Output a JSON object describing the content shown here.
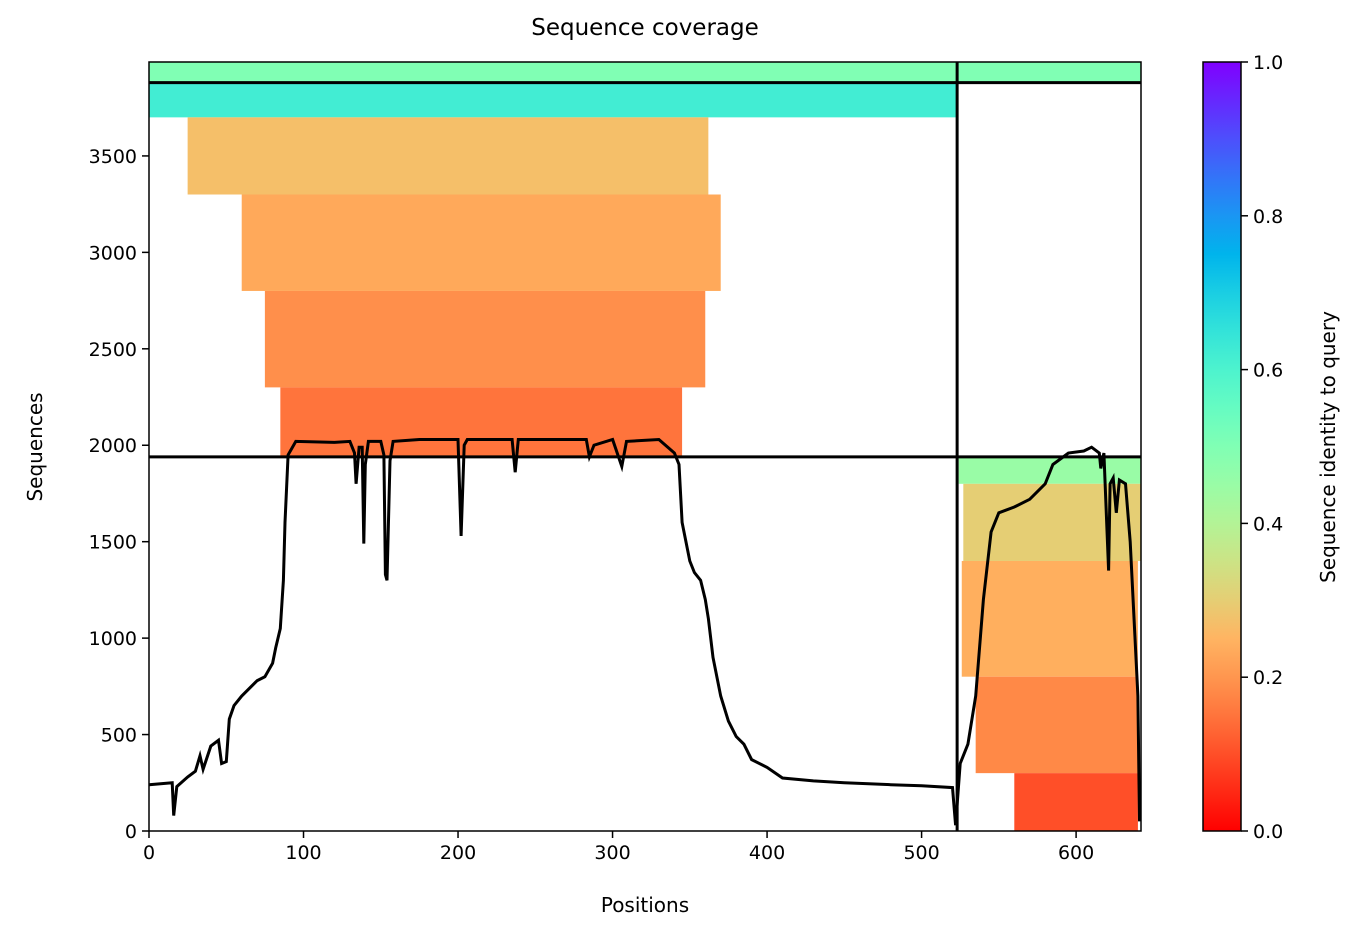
{
  "chart_data": {
    "type": "coverage",
    "title": "Sequence coverage",
    "xlabel": "Positions",
    "ylabel": "Sequences",
    "xlim": [
      0,
      642
    ],
    "ylim": [
      0,
      3987
    ],
    "xticks": [
      0,
      100,
      200,
      300,
      400,
      500,
      600
    ],
    "yticks": [
      0,
      500,
      1000,
      1500,
      2000,
      2500,
      3000,
      3500
    ],
    "colormap": "rainbow_r",
    "colorbar": {
      "label": "Sequence identity to query",
      "lim": [
        0,
        1
      ],
      "ticks": [
        {
          "value": 0,
          "label": "0.0"
        },
        0.2,
        0.4,
        0.6,
        0.8,
        {
          "value": 1,
          "label": "1.0"
        }
      ]
    },
    "boundaries": {
      "x": [
        523
      ],
      "y": [
        1940,
        3880
      ]
    },
    "blocks": [
      {
        "x": [
          0,
          642
        ],
        "y": [
          3880,
          3987
        ],
        "identity": 0.5
      },
      {
        "x": [
          0,
          523
        ],
        "y": [
          3700,
          3880
        ],
        "identity": 0.62
      },
      {
        "x": [
          25,
          362
        ],
        "y": [
          3300,
          3700
        ],
        "identity": 0.27
      },
      {
        "x": [
          60,
          370
        ],
        "y": [
          2800,
          3300
        ],
        "identity": 0.23
      },
      {
        "x": [
          75,
          360
        ],
        "y": [
          2300,
          2800
        ],
        "identity": 0.19
      },
      {
        "x": [
          85,
          345
        ],
        "y": [
          1940,
          2300
        ],
        "identity": 0.15
      },
      {
        "x": [
          524,
          642
        ],
        "y": [
          1800,
          1940
        ],
        "identity": 0.45
      },
      {
        "x": [
          527,
          642
        ],
        "y": [
          1400,
          1800
        ],
        "identity": 0.3
      },
      {
        "x": [
          526,
          640
        ],
        "y": [
          800,
          1400
        ],
        "identity": 0.24
      },
      {
        "x": [
          535,
          640
        ],
        "y": [
          300,
          800
        ],
        "identity": 0.18
      },
      {
        "x": [
          560,
          640
        ],
        "y": [
          0,
          300
        ],
        "identity": 0.1
      }
    ],
    "line": {
      "color": "#000000",
      "x": [
        0,
        15,
        16,
        18,
        25,
        30,
        33,
        35,
        40,
        45,
        47,
        50,
        52,
        55,
        60,
        70,
        75,
        80,
        82,
        85,
        87,
        88,
        90,
        95,
        120,
        130,
        133,
        134,
        136,
        138,
        139,
        140,
        142,
        150,
        152,
        153,
        154,
        156,
        158,
        175,
        200,
        202,
        204,
        206,
        235,
        237,
        239,
        283,
        285,
        288,
        300,
        306,
        309,
        330,
        340,
        343,
        345,
        350,
        353,
        357,
        360,
        362,
        365,
        370,
        375,
        380,
        385,
        390,
        400,
        410,
        430,
        450,
        480,
        500,
        520,
        522,
        525,
        530,
        535,
        540,
        545,
        550,
        560,
        570,
        580,
        585,
        595,
        605,
        610,
        615,
        616,
        618,
        621,
        622,
        624,
        626,
        628,
        632,
        635,
        640,
        641
      ],
      "values": [
        240,
        250,
        80,
        230,
        280,
        310,
        390,
        320,
        440,
        470,
        350,
        360,
        580,
        650,
        700,
        780,
        800,
        870,
        950,
        1050,
        1300,
        1600,
        1950,
        2020,
        2015,
        2020,
        1960,
        1800,
        1990,
        1990,
        1490,
        1900,
        2020,
        2020,
        1950,
        1330,
        1300,
        1920,
        2020,
        2030,
        2030,
        1530,
        2000,
        2030,
        2030,
        1860,
        2030,
        2030,
        1940,
        2000,
        2030,
        1890,
        2020,
        2030,
        1960,
        1900,
        1600,
        1400,
        1340,
        1300,
        1200,
        1100,
        900,
        700,
        570,
        490,
        450,
        370,
        330,
        275,
        260,
        250,
        240,
        235,
        225,
        30,
        350,
        450,
        700,
        1200,
        1550,
        1650,
        1680,
        1720,
        1800,
        1900,
        1960,
        1970,
        1990,
        1960,
        1880,
        1960,
        1350,
        1800,
        1830,
        1650,
        1820,
        1800,
        1500,
        700,
        50
      ]
    }
  }
}
